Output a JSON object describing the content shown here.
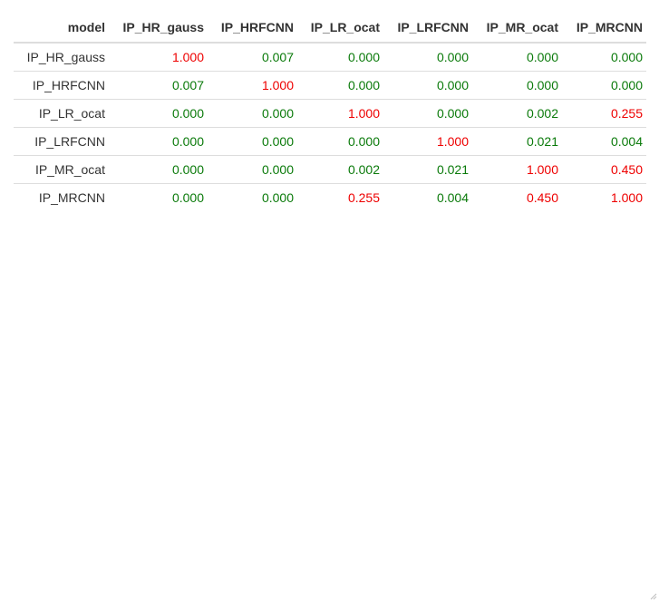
{
  "table": {
    "headers": [
      "model",
      "IP_HR_gauss",
      "IP_HRFCNN",
      "IP_LR_ocat",
      "IP_LRFCNN",
      "IP_MR_ocat",
      "IP_MRCNN"
    ],
    "rows": [
      {
        "model": "IP_HR_gauss",
        "values": [
          "1.000",
          "0.007",
          "0.000",
          "0.000",
          "0.000",
          "0.000"
        ],
        "colors": [
          "red",
          "green",
          "green",
          "green",
          "green",
          "green"
        ]
      },
      {
        "model": "IP_HRFCNN",
        "values": [
          "0.007",
          "1.000",
          "0.000",
          "0.000",
          "0.000",
          "0.000"
        ],
        "colors": [
          "green",
          "red",
          "green",
          "green",
          "green",
          "green"
        ]
      },
      {
        "model": "IP_LR_ocat",
        "values": [
          "0.000",
          "0.000",
          "1.000",
          "0.000",
          "0.002",
          "0.255"
        ],
        "colors": [
          "green",
          "green",
          "red",
          "green",
          "green",
          "red"
        ]
      },
      {
        "model": "IP_LRFCNN",
        "values": [
          "0.000",
          "0.000",
          "0.000",
          "1.000",
          "0.021",
          "0.004"
        ],
        "colors": [
          "green",
          "green",
          "green",
          "red",
          "green",
          "green"
        ]
      },
      {
        "model": "IP_MR_ocat",
        "values": [
          "0.000",
          "0.000",
          "0.002",
          "0.021",
          "1.000",
          "0.450"
        ],
        "colors": [
          "green",
          "green",
          "green",
          "green",
          "red",
          "red"
        ]
      },
      {
        "model": "IP_MRCNN",
        "values": [
          "0.000",
          "0.000",
          "0.255",
          "0.004",
          "0.450",
          "1.000"
        ],
        "colors": [
          "green",
          "green",
          "red",
          "green",
          "red",
          "red"
        ]
      }
    ]
  },
  "colors": {
    "red": "#ee0000",
    "green": "#0a7a0a",
    "border": "#dddddd",
    "text": "#333333"
  },
  "icons": {
    "resize_grip": "resize-grip-icon"
  }
}
